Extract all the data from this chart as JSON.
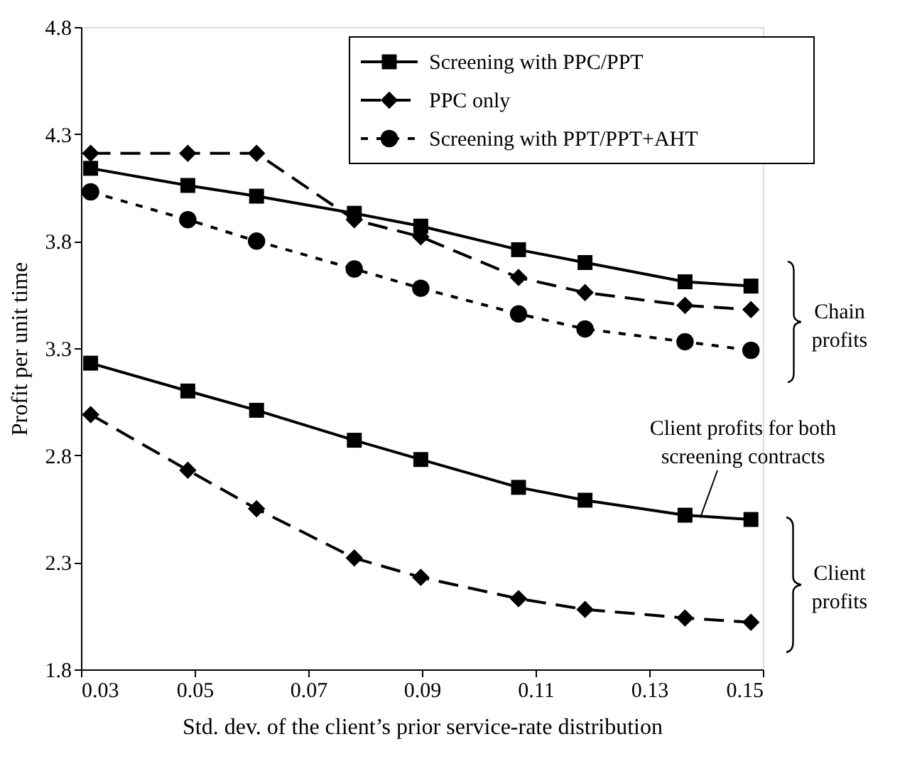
{
  "chart_data": {
    "type": "line",
    "xlabel": "Std. dev. of the client’s prior service-rate distribution",
    "ylabel": "Profit per unit time",
    "x": [
      0.0317,
      0.0488,
      0.0609,
      0.0781,
      0.0898,
      0.107,
      0.1187,
      0.1363,
      0.1479
    ],
    "series": [
      {
        "name": "Screening with PPC/PPT",
        "color": "#000000",
        "marker": "square",
        "line_style": "solid",
        "values": [
          4.14,
          4.06,
          4.01,
          3.93,
          3.87,
          3.76,
          3.7,
          3.61,
          3.59
        ]
      },
      {
        "name": "PPC only",
        "color": "#000000",
        "marker": "diamond",
        "line_style": "dashed",
        "values": [
          4.21,
          4.21,
          4.21,
          3.9,
          3.82,
          3.63,
          3.56,
          3.5,
          3.48
        ]
      },
      {
        "name": "Screening with PPT/PPT+AHT",
        "color": "#000000",
        "marker": "circle",
        "line_style": "dotted",
        "values": [
          4.03,
          3.9,
          3.8,
          3.67,
          3.58,
          3.46,
          3.39,
          3.33,
          3.29
        ]
      },
      {
        "color": "#000000",
        "marker": "square",
        "line_style": "solid",
        "values": [
          3.23,
          3.1,
          3.01,
          2.87,
          2.78,
          2.65,
          2.59,
          2.52,
          2.5
        ]
      },
      {
        "color": "#000000",
        "marker": "diamond",
        "line_style": "dashed",
        "values": [
          2.99,
          2.73,
          2.55,
          2.32,
          2.23,
          2.13,
          2.08,
          2.04,
          2.02
        ]
      }
    ],
    "xlim": [
      0.03,
      0.15
    ],
    "xticks": [
      0.03,
      0.05,
      0.07,
      0.09,
      0.11,
      0.13,
      0.15
    ],
    "ylim": [
      1.8,
      4.8
    ],
    "yticks": [
      1.8,
      2.3,
      2.8,
      3.3,
      3.8,
      4.3,
      4.8
    ],
    "annotations": [
      "Chain profits",
      "Client profits",
      {
        "text": "Client profits for both screening contracts",
        "x": 0.139,
        "y": 2.51
      }
    ],
    "legend": "top right",
    "grid": false
  }
}
